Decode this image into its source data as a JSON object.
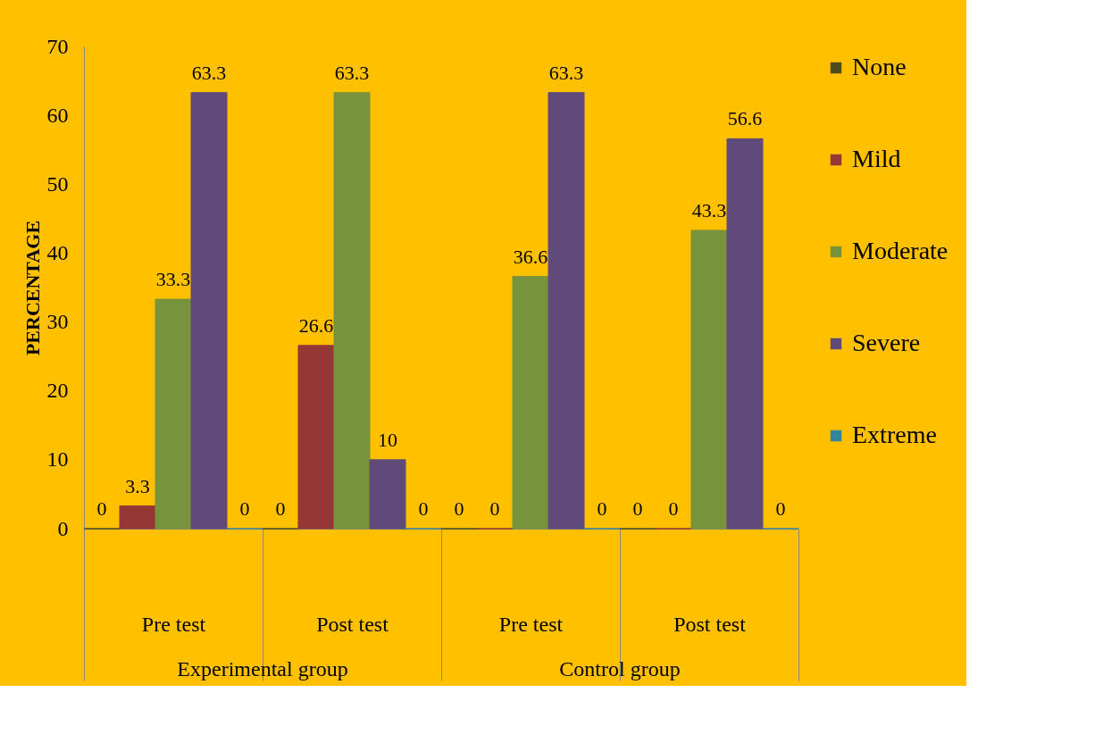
{
  "chart_data": {
    "type": "bar",
    "ylabel": "PERCENTAGE",
    "categories": [
      "Pre test",
      "Post test",
      "Pre test",
      "Post test"
    ],
    "annotations": [
      "Experimental group",
      "Control group"
    ],
    "series": [
      {
        "name": "None",
        "color": "#4f4b1f",
        "values": [
          0,
          0,
          0,
          0
        ]
      },
      {
        "name": "Mild",
        "color": "#953735",
        "values": [
          3.3,
          26.6,
          0,
          0
        ]
      },
      {
        "name": "Moderate",
        "color": "#77933c",
        "values": [
          33.3,
          63.3,
          36.6,
          43.3
        ]
      },
      {
        "name": "Severe",
        "color": "#604a7b",
        "values": [
          63.3,
          10,
          63.3,
          56.6
        ]
      },
      {
        "name": "Extreme",
        "color": "#31859c",
        "values": [
          0,
          0,
          0,
          0
        ]
      }
    ],
    "ylim": [
      0,
      70
    ],
    "yticks": [
      0,
      10,
      20,
      30,
      40,
      50,
      60,
      70
    ],
    "data_labels": true,
    "grid": false,
    "legend": "right"
  }
}
